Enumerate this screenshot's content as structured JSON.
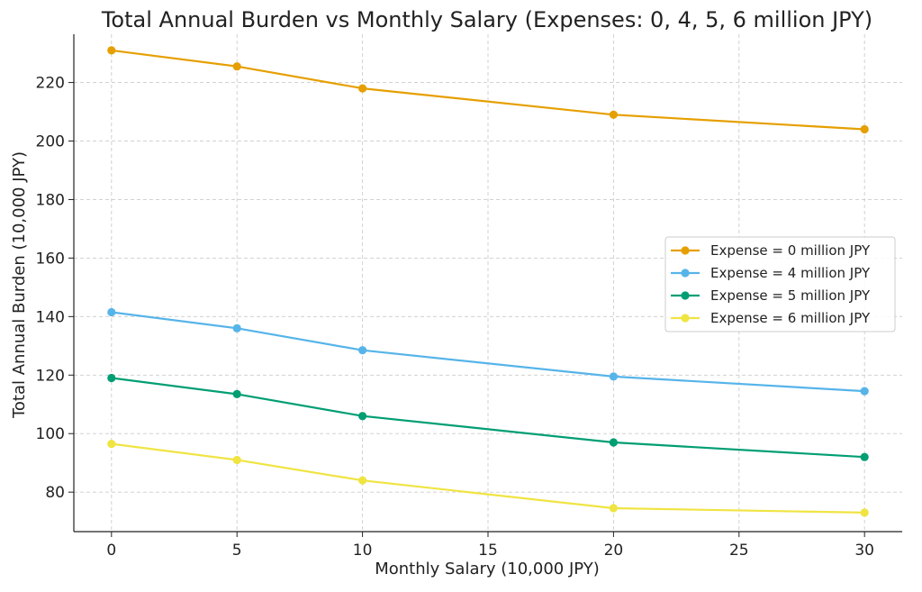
{
  "chart_data": {
    "type": "line",
    "title": "Total Annual Burden vs Monthly Salary (Expenses: 0, 4, 5, 6 million JPY)",
    "xlabel": "Monthly Salary (10,000 JPY)",
    "ylabel": "Total Annual Burden (10,000 JPY)",
    "x": [
      0,
      5,
      10,
      20,
      30
    ],
    "xlim": [
      -1.5,
      31.5
    ],
    "ylim": [
      66.5,
      236.5
    ],
    "xticks": [
      0,
      5,
      10,
      15,
      20,
      25,
      30
    ],
    "yticks": [
      80,
      100,
      120,
      140,
      160,
      180,
      200,
      220
    ],
    "grid": true,
    "legend_position": "center-right",
    "series": [
      {
        "name": "Expense = 0 million JPY",
        "color": "#E69F00",
        "values": [
          231,
          225.5,
          218,
          209,
          204
        ]
      },
      {
        "name": "Expense = 4 million JPY",
        "color": "#56B4E9",
        "values": [
          141.5,
          136,
          128.5,
          119.5,
          114.5
        ]
      },
      {
        "name": "Expense = 5 million JPY",
        "color": "#009E73",
        "values": [
          119,
          113.5,
          106,
          97,
          92
        ]
      },
      {
        "name": "Expense = 6 million JPY",
        "color": "#F0E442",
        "values": [
          96.5,
          91,
          84,
          74.5,
          73
        ]
      }
    ]
  }
}
